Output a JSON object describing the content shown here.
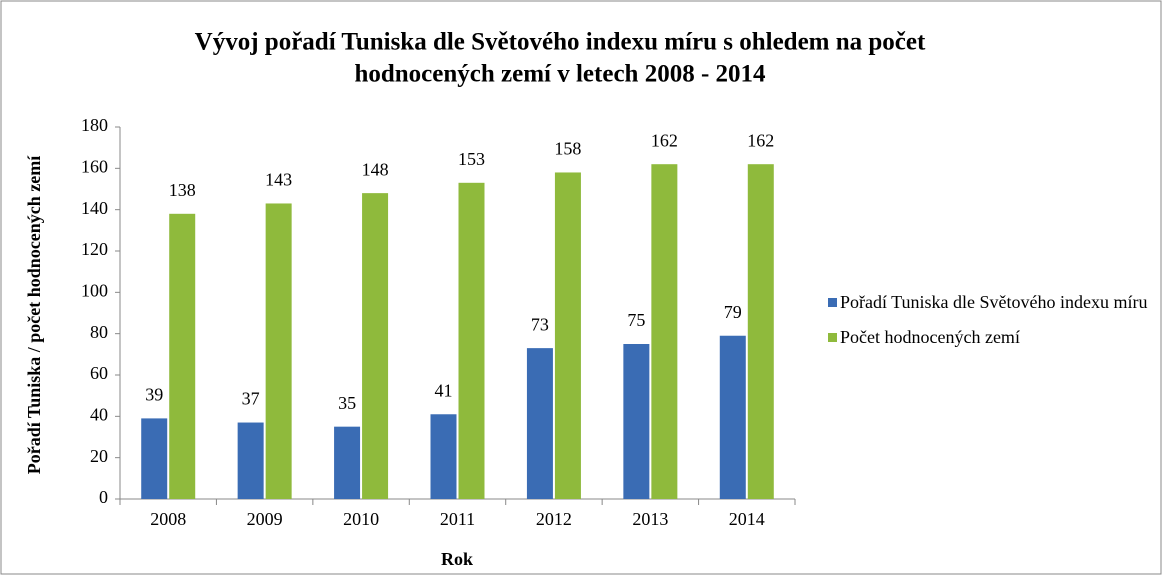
{
  "chart_data": {
    "type": "bar",
    "title": [
      "Vývoj pořadí Tuniska dle Světového indexu míru s ohledem na počet",
      "hodnocených zemí v letech 2008 - 2014"
    ],
    "x_label": "Rok",
    "y_label": "Pořadí Tuniska / počet hodnocených zemí",
    "categories": [
      "2008",
      "2009",
      "2010",
      "2011",
      "2012",
      "2013",
      "2014"
    ],
    "series": [
      {
        "name": "Pořadí Tuniska dle Světového indexu míru",
        "color": "#3a6cb4",
        "values": [
          39,
          37,
          35,
          41,
          73,
          75,
          79
        ]
      },
      {
        "name": "Počet hodnocených zemí",
        "color": "#8fba3c",
        "values": [
          138,
          143,
          148,
          153,
          158,
          162,
          162
        ]
      }
    ],
    "ylim": [
      0,
      180
    ],
    "yticks": [
      0,
      20,
      40,
      60,
      80,
      100,
      120,
      140,
      160,
      180
    ],
    "grid": false,
    "legend": "right"
  }
}
